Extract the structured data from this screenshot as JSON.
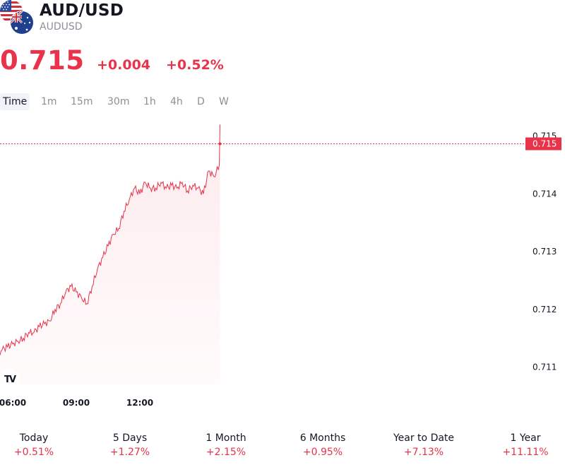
{
  "header": {
    "title": "AUD/USD",
    "subtitle": "AUDUSD",
    "flags": [
      "us-flag-icon",
      "australia-flag-icon"
    ]
  },
  "quote": {
    "price": "0.715",
    "change": "+0.004",
    "change_pct": "+0.52%",
    "color": "#e8334a"
  },
  "tabs": [
    {
      "label": "Time",
      "active": true
    },
    {
      "label": "1m",
      "active": false
    },
    {
      "label": "15m",
      "active": false
    },
    {
      "label": "30m",
      "active": false
    },
    {
      "label": "1h",
      "active": false
    },
    {
      "label": "4h",
      "active": false
    },
    {
      "label": "D",
      "active": false
    },
    {
      "label": "W",
      "active": false
    }
  ],
  "chart_data": {
    "type": "line",
    "series": [
      {
        "x": [
          "05:00",
          "05:15",
          "05:30",
          "05:45",
          "06:00",
          "06:15",
          "06:30",
          "06:45",
          "07:00",
          "07:15",
          "07:30",
          "07:45",
          "08:00",
          "08:15",
          "08:30",
          "08:45",
          "09:00",
          "09:15",
          "09:30",
          "09:45",
          "10:00",
          "10:15",
          "10:30",
          "10:45",
          "11:00",
          "11:15",
          "11:30",
          "11:45",
          "12:00",
          "12:15",
          "12:30",
          "12:45",
          "13:00",
          "13:15",
          "13:30",
          "13:45",
          "14:00",
          "14:15",
          "14:30",
          "14:45",
          "15:00",
          "15:15",
          "15:30",
          "15:45"
        ],
        "values": [
          0.7111,
          0.7112,
          0.7113,
          0.71135,
          0.7114,
          0.71145,
          0.7115,
          0.7116,
          0.7116,
          0.7117,
          0.71175,
          0.7118,
          0.712,
          0.7121,
          0.7123,
          0.7124,
          0.7123,
          0.7122,
          0.7121,
          0.7124,
          0.7127,
          0.7129,
          0.7131,
          0.7133,
          0.7134,
          0.7137,
          0.7139,
          0.7141,
          0.714,
          0.7142,
          0.7141,
          0.7141,
          0.7142,
          0.7141,
          0.71415,
          0.7141,
          0.7142,
          0.71405,
          0.71415,
          0.7141,
          0.714,
          0.7144,
          0.7143,
          0.7145
        ]
      }
    ],
    "x_ticks": [
      "06:00",
      "09:00",
      "12:00"
    ],
    "y_ticks": [
      "0.715",
      "0.714",
      "0.713",
      "0.712",
      "0.711"
    ],
    "ylim": [
      0.7107,
      0.7154
    ],
    "last_price_label": "0.715",
    "grid": false,
    "line_color": "#e8334a"
  },
  "performance": [
    {
      "label": "Today",
      "value": "+0.51%"
    },
    {
      "label": "5 Days",
      "value": "+1.27%"
    },
    {
      "label": "1 Month",
      "value": "+2.15%"
    },
    {
      "label": "6 Months",
      "value": "+0.95%"
    },
    {
      "label": "Year to Date",
      "value": "+7.13%"
    },
    {
      "label": "1 Year",
      "value": "+11.11%"
    }
  ]
}
